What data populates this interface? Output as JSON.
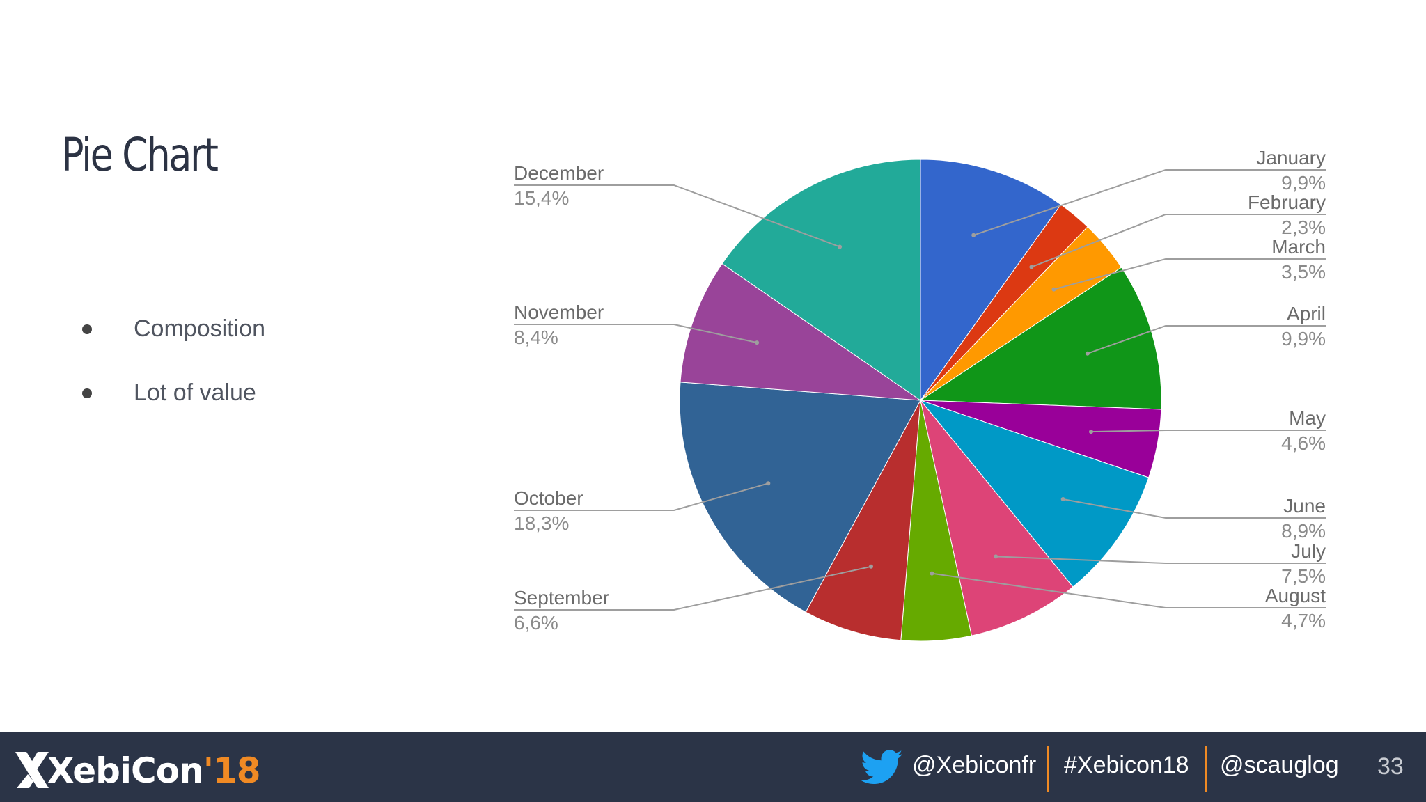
{
  "slide": {
    "title": "Pie Chart",
    "bullets": [
      "Composition",
      "Lot of value"
    ],
    "page_number": "33"
  },
  "footer": {
    "logo_text": "XebiCon",
    "logo_year": "'18",
    "twitter_handle": "@Xebiconfr",
    "hashtag": "#Xebicon18",
    "speaker_handle": "@scauglog"
  },
  "chart_data": {
    "type": "pie",
    "title": "",
    "categories": [
      "January",
      "February",
      "March",
      "April",
      "May",
      "June",
      "July",
      "August",
      "September",
      "October",
      "November",
      "December"
    ],
    "values": [
      9.9,
      2.3,
      3.5,
      9.9,
      4.6,
      8.9,
      7.5,
      4.7,
      6.6,
      18.3,
      8.4,
      15.4
    ],
    "value_labels": [
      "9,9%",
      "2,3%",
      "3,5%",
      "9,9%",
      "4,6%",
      "8,9%",
      "7,5%",
      "4,7%",
      "6,6%",
      "18,3%",
      "8,4%",
      "15,4%"
    ],
    "colors": [
      "#3366cc",
      "#dc3912",
      "#ff9900",
      "#109618",
      "#990099",
      "#0099c6",
      "#dd4477",
      "#66aa00",
      "#b82e2e",
      "#316395",
      "#994499",
      "#22aa99"
    ],
    "start_angle": "12 o'clock, clockwise",
    "legend": "callout labels"
  }
}
